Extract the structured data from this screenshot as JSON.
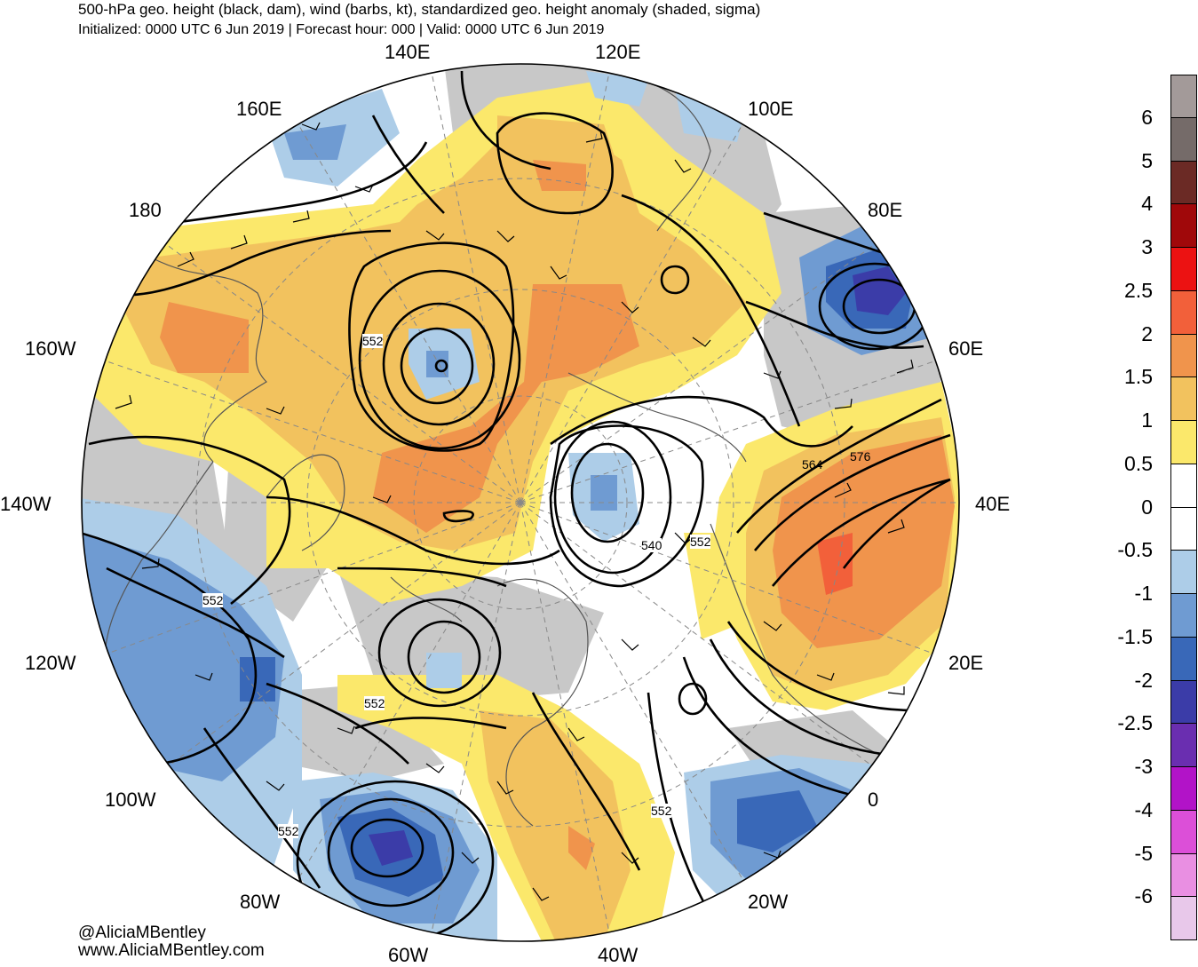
{
  "header": {
    "title": "500-hPa geo. height (black, dam), wind (barbs, kt), standardized geo. height anomaly (shaded, sigma)",
    "subtitle": "Initialized: 0000 UTC 6 Jun 2019 | Forecast hour: 000 | Valid: 0000 UTC 6 Jun 2019"
  },
  "longitude_labels": {
    "e140": "140E",
    "e120": "120E",
    "e160": "160E",
    "e100": "100E",
    "d180": "180",
    "e80": "80E",
    "w160": "160W",
    "e60": "60E",
    "w140": "140W",
    "e40": "40E",
    "w120": "120W",
    "e20": "20E",
    "w100": "100W",
    "d0": "0",
    "w80": "80W",
    "w20": "20W",
    "w60": "60W",
    "w40": "40W"
  },
  "contour_labels": {
    "c552a": "552",
    "c552b": "552",
    "c552c": "552",
    "c552d": "552",
    "c552e": "552",
    "c552f": "552",
    "c540": "540",
    "c564": "564",
    "c576": "576"
  },
  "colorbar": {
    "labels": [
      "6",
      "5",
      "4",
      "3",
      "2.5",
      "2",
      "1.5",
      "1",
      "0.5",
      "0",
      "-0.5",
      "-1",
      "-1.5",
      "-2",
      "-2.5",
      "-3",
      "-4",
      "-5",
      "-6"
    ],
    "colors": [
      "#a39a99",
      "#756b69",
      "#6b2a25",
      "#a0080a",
      "#ec1212",
      "#f2603a",
      "#f0944c",
      "#f2c25e",
      "#fbe86b",
      "#ffffff",
      "#ffffff",
      "#adcde8",
      "#6f9bd2",
      "#3968b8",
      "#3b3ca8",
      "#6a2eb0",
      "#b213c8",
      "#dc4fd8",
      "#e98fe2",
      "#e8c8ea"
    ]
  },
  "credits": {
    "handle": "@AliciaMBentley",
    "website": "www.AliciaMBentley.com"
  }
}
